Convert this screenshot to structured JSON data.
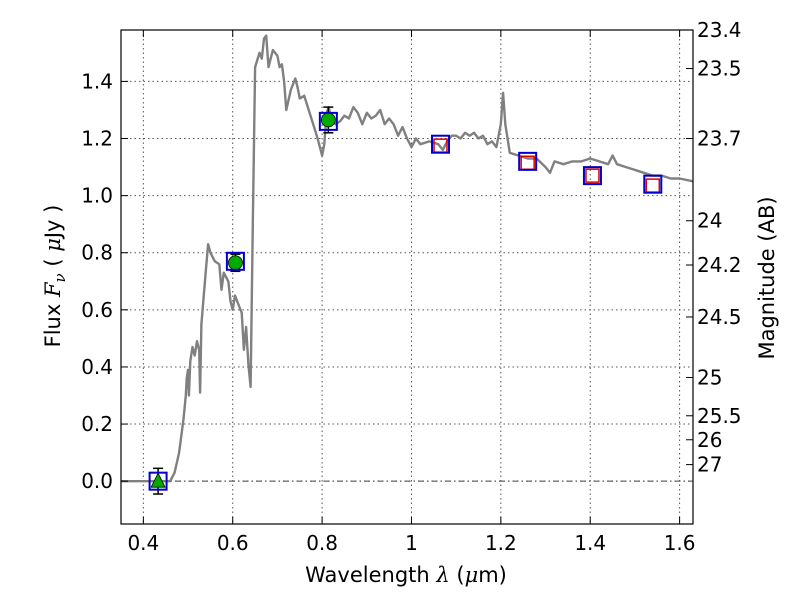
{
  "chart_data": {
    "type": "scatter",
    "xlabel": {
      "prefix": "Wavelength  ",
      "symbol": "λ",
      "unit_open": " (",
      "unit_mu": "μ",
      "unit_rest": "m)"
    },
    "ylabel": {
      "prefix": "Flux  ",
      "symbol": "F",
      "subscript": "ν",
      "unit_open": "  ( ",
      "unit_mu": "μ",
      "unit_rest": "Jy )"
    },
    "y2label": "Magnitude (AB)",
    "xlim": [
      0.35,
      1.63
    ],
    "ylim": [
      -0.15,
      1.58
    ],
    "grid": true,
    "x_ticks": [
      {
        "value": 0.4,
        "label": "0.4"
      },
      {
        "value": 0.6,
        "label": "0.6"
      },
      {
        "value": 0.8,
        "label": "0.8"
      },
      {
        "value": 1.0,
        "label": "1"
      },
      {
        "value": 1.2,
        "label": "1.2"
      },
      {
        "value": 1.4,
        "label": "1.4"
      },
      {
        "value": 1.6,
        "label": "1.6"
      }
    ],
    "y_ticks": [
      {
        "value": 0.0,
        "label": "0.0"
      },
      {
        "value": 0.2,
        "label": "0.2"
      },
      {
        "value": 0.4,
        "label": "0.4"
      },
      {
        "value": 0.6,
        "label": "0.6"
      },
      {
        "value": 0.8,
        "label": "0.8"
      },
      {
        "value": 1.0,
        "label": "1.0"
      },
      {
        "value": 1.2,
        "label": "1.2"
      },
      {
        "value": 1.4,
        "label": "1.4"
      }
    ],
    "magnitude_ticks": [
      {
        "flux": 1.58,
        "label": "23.4"
      },
      {
        "flux": 1.445,
        "label": "23.5"
      },
      {
        "flux": 1.2,
        "label": "23.7"
      },
      {
        "flux": 0.912,
        "label": "24"
      },
      {
        "flux": 0.757,
        "label": "24.2"
      },
      {
        "flux": 0.575,
        "label": "24.5"
      },
      {
        "flux": 0.363,
        "label": "25"
      },
      {
        "flux": 0.229,
        "label": "25.5"
      },
      {
        "flux": 0.145,
        "label": "26"
      },
      {
        "flux": 0.058,
        "label": "27"
      }
    ],
    "zero_line": 0.0,
    "model_spectrum": [
      [
        0.35,
        0.0
      ],
      [
        0.46,
        0.0
      ],
      [
        0.47,
        0.03
      ],
      [
        0.48,
        0.1
      ],
      [
        0.49,
        0.22
      ],
      [
        0.495,
        0.3
      ],
      [
        0.497,
        0.36
      ],
      [
        0.5,
        0.39
      ],
      [
        0.502,
        0.3
      ],
      [
        0.505,
        0.42
      ],
      [
        0.51,
        0.47
      ],
      [
        0.515,
        0.44
      ],
      [
        0.52,
        0.49
      ],
      [
        0.525,
        0.46
      ],
      [
        0.527,
        0.31
      ],
      [
        0.53,
        0.55
      ],
      [
        0.54,
        0.74
      ],
      [
        0.545,
        0.83
      ],
      [
        0.55,
        0.8
      ],
      [
        0.56,
        0.77
      ],
      [
        0.57,
        0.76
      ],
      [
        0.575,
        0.67
      ],
      [
        0.58,
        0.73
      ],
      [
        0.59,
        0.7
      ],
      [
        0.595,
        0.63
      ],
      [
        0.6,
        0.6
      ],
      [
        0.605,
        0.65
      ],
      [
        0.61,
        0.63
      ],
      [
        0.615,
        0.61
      ],
      [
        0.62,
        0.59
      ],
      [
        0.625,
        0.46
      ],
      [
        0.63,
        0.54
      ],
      [
        0.635,
        0.41
      ],
      [
        0.64,
        0.33
      ],
      [
        0.645,
        0.9
      ],
      [
        0.65,
        1.45
      ],
      [
        0.66,
        1.5
      ],
      [
        0.665,
        1.48
      ],
      [
        0.67,
        1.55
      ],
      [
        0.675,
        1.56
      ],
      [
        0.68,
        1.45
      ],
      [
        0.69,
        1.51
      ],
      [
        0.7,
        1.49
      ],
      [
        0.705,
        1.45
      ],
      [
        0.71,
        1.46
      ],
      [
        0.715,
        1.4
      ],
      [
        0.72,
        1.3
      ],
      [
        0.73,
        1.37
      ],
      [
        0.74,
        1.41
      ],
      [
        0.745,
        1.38
      ],
      [
        0.75,
        1.34
      ],
      [
        0.76,
        1.35
      ],
      [
        0.77,
        1.3
      ],
      [
        0.78,
        1.25
      ],
      [
        0.79,
        1.2
      ],
      [
        0.8,
        1.14
      ],
      [
        0.805,
        1.18
      ],
      [
        0.81,
        1.29
      ],
      [
        0.815,
        1.31
      ],
      [
        0.82,
        1.27
      ],
      [
        0.83,
        1.25
      ],
      [
        0.84,
        1.26
      ],
      [
        0.85,
        1.28
      ],
      [
        0.86,
        1.27
      ],
      [
        0.87,
        1.31
      ],
      [
        0.88,
        1.29
      ],
      [
        0.89,
        1.25
      ],
      [
        0.9,
        1.29
      ],
      [
        0.91,
        1.27
      ],
      [
        0.92,
        1.28
      ],
      [
        0.93,
        1.3
      ],
      [
        0.94,
        1.25
      ],
      [
        0.95,
        1.27
      ],
      [
        0.96,
        1.25
      ],
      [
        0.97,
        1.21
      ],
      [
        0.98,
        1.24
      ],
      [
        0.99,
        1.2
      ],
      [
        1.0,
        1.17
      ],
      [
        1.01,
        1.2
      ],
      [
        1.02,
        1.18
      ],
      [
        1.04,
        1.19
      ],
      [
        1.06,
        1.18
      ],
      [
        1.07,
        1.16
      ],
      [
        1.08,
        1.19
      ],
      [
        1.09,
        1.21
      ],
      [
        1.1,
        1.21
      ],
      [
        1.11,
        1.2
      ],
      [
        1.12,
        1.22
      ],
      [
        1.13,
        1.21
      ],
      [
        1.14,
        1.22
      ],
      [
        1.15,
        1.2
      ],
      [
        1.16,
        1.21
      ],
      [
        1.17,
        1.18
      ],
      [
        1.18,
        1.19
      ],
      [
        1.19,
        1.17
      ],
      [
        1.2,
        1.25
      ],
      [
        1.205,
        1.36
      ],
      [
        1.21,
        1.25
      ],
      [
        1.22,
        1.15
      ],
      [
        1.24,
        1.14
      ],
      [
        1.26,
        1.13
      ],
      [
        1.28,
        1.13
      ],
      [
        1.3,
        1.1
      ],
      [
        1.31,
        1.08
      ],
      [
        1.32,
        1.12
      ],
      [
        1.34,
        1.11
      ],
      [
        1.36,
        1.12
      ],
      [
        1.38,
        1.12
      ],
      [
        1.4,
        1.13
      ],
      [
        1.42,
        1.12
      ],
      [
        1.44,
        1.11
      ],
      [
        1.45,
        1.14
      ],
      [
        1.46,
        1.11
      ],
      [
        1.48,
        1.1
      ],
      [
        1.5,
        1.09
      ],
      [
        1.52,
        1.08
      ],
      [
        1.54,
        1.07
      ],
      [
        1.56,
        1.07
      ],
      [
        1.58,
        1.06
      ],
      [
        1.6,
        1.06
      ],
      [
        1.63,
        1.05
      ]
    ],
    "model_photometry": [
      {
        "x": 0.433,
        "y": 0.0
      },
      {
        "x": 0.606,
        "y": 0.77
      },
      {
        "x": 0.814,
        "y": 1.26
      },
      {
        "x": 1.065,
        "y": 1.18
      },
      {
        "x": 1.26,
        "y": 1.12
      },
      {
        "x": 1.405,
        "y": 1.07
      },
      {
        "x": 1.54,
        "y": 1.04
      }
    ],
    "detections": [
      {
        "x": 0.606,
        "y": 0.765,
        "err": 0.03
      },
      {
        "x": 0.814,
        "y": 1.265,
        "err": 0.045
      }
    ],
    "upper_limits": [
      {
        "x": 0.433,
        "y": 0.0,
        "err": 0.045
      }
    ],
    "observed_open": [
      {
        "x": 1.065,
        "y": 1.175
      },
      {
        "x": 1.26,
        "y": 1.115
      },
      {
        "x": 1.405,
        "y": 1.07
      },
      {
        "x": 1.54,
        "y": 1.035
      }
    ],
    "colors": {
      "spectrum": "#808080",
      "model_box": "#0000cc",
      "detection": "#00aa00",
      "observed_box": "#dd0000",
      "grid": "#555555"
    }
  }
}
